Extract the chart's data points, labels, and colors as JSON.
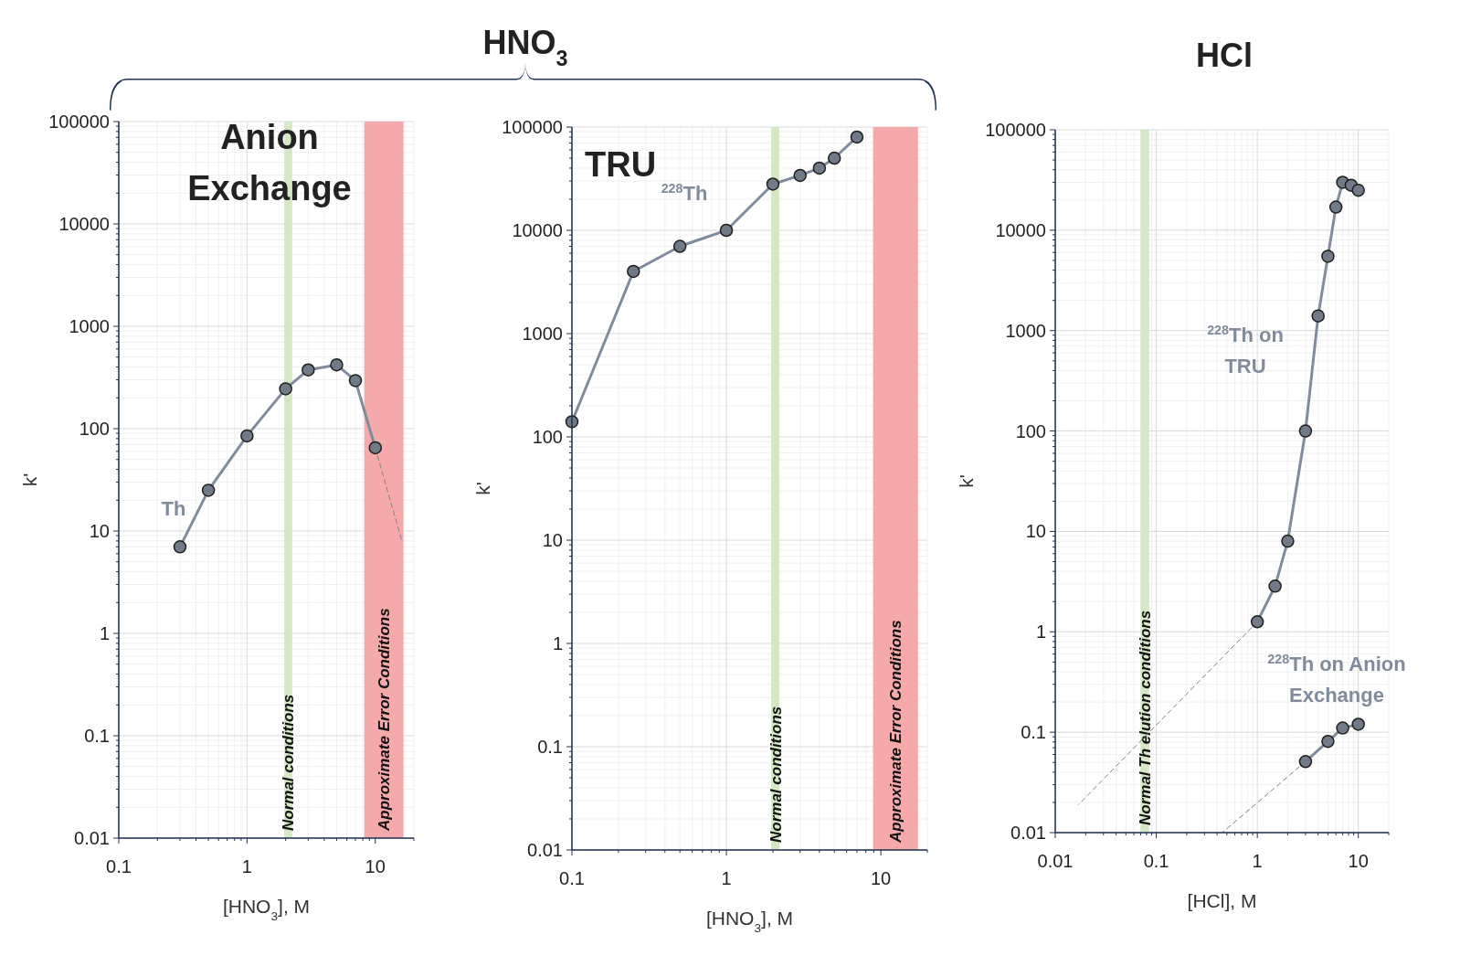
{
  "chart_data": [
    {
      "type": "line",
      "subtitle": "Anion Exchange",
      "xlabel": "[HNO$_{3}$], M",
      "ylabel": "k'",
      "log": "xy",
      "grid": true,
      "xlim": [
        0.1,
        20
      ],
      "ylim": [
        0.01,
        100000
      ],
      "xticks": [
        0.1,
        1,
        10
      ],
      "yticks": [
        0.01,
        0.1,
        1,
        10,
        100,
        1000,
        10000,
        100000
      ],
      "series": [
        {
          "name": "Th",
          "color": "#808b9c",
          "marker": "circle",
          "x": [
            0.3,
            0.5,
            1,
            2,
            3,
            5,
            7,
            10
          ],
          "values": [
            7,
            25,
            85,
            245,
            375,
            420,
            295,
            65
          ]
        },
        {
          "color": "#808080",
          "line_style": "dashed",
          "x": [
            10,
            16
          ],
          "values": [
            65,
            8.3
          ]
        }
      ],
      "bands": [
        {
          "axis": "x",
          "from": 1.95,
          "to": 2.25,
          "label": "Normal conditions",
          "color": "#d5e8c4"
        },
        {
          "axis": "x",
          "from": 8.2,
          "to": 16.6,
          "label": "Approximate Error Conditions",
          "color": "#f4aaaa"
        }
      ]
    },
    {
      "type": "line",
      "title": "HNO$_{3}$",
      "subtitle": "TRU",
      "xlabel": "[HNO$_{3}$], M",
      "ylabel": "k'",
      "log": "xy",
      "grid": true,
      "xlim": [
        0.1,
        20
      ],
      "ylim": [
        0.01,
        100000
      ],
      "xticks": [
        0.1,
        1,
        10
      ],
      "yticks": [
        0.01,
        0.1,
        1,
        10,
        100,
        1000,
        10000,
        100000
      ],
      "series": [
        {
          "name": "$^{228}$Th",
          "color": "#808b9c",
          "marker": "circle",
          "x": [
            0.1,
            0.25,
            0.5,
            1,
            2,
            3,
            4,
            5,
            7
          ],
          "values": [
            140,
            4000,
            7000,
            10000,
            28000,
            34000,
            40000,
            50000,
            80000
          ]
        }
      ],
      "bands": [
        {
          "axis": "x",
          "from": 1.95,
          "to": 2.2,
          "label": "Normal conditions",
          "color": "#d5e8c4"
        },
        {
          "axis": "x",
          "from": 8.9,
          "to": 17.4,
          "label": "Approximate Error Conditions",
          "color": "#f4aaaa"
        }
      ]
    },
    {
      "type": "line",
      "title": "HCl",
      "xlabel": "[HCl], M",
      "ylabel": "k'",
      "log": "xy",
      "grid": true,
      "xlim": [
        0.01,
        20
      ],
      "ylim": [
        0.01,
        100000
      ],
      "xticks": [
        0.01,
        0.1,
        1,
        10
      ],
      "yticks": [
        0.01,
        0.1,
        1,
        10,
        100,
        1000,
        10000,
        100000
      ],
      "series": [
        {
          "name": "$^{228}$Th on TRU",
          "color": "#808b9c",
          "marker": "circle",
          "x": [
            1,
            1.5,
            2,
            3,
            4,
            5,
            6,
            7,
            8.5,
            10
          ],
          "values": [
            1.26,
            2.85,
            8,
            100,
            1400,
            5500,
            17000,
            30000,
            28000,
            25000
          ]
        },
        {
          "name": "$^{228}$Th on Anion Exchange",
          "color": "#808b9c",
          "marker": "circle",
          "x": [
            3,
            5,
            7,
            10
          ],
          "values": [
            0.051,
            0.081,
            0.11,
            0.12
          ]
        },
        {
          "color": "#808080",
          "line_style": "dashed",
          "x": [
            1,
            0.017
          ],
          "values": [
            1.26,
            0.019
          ]
        },
        {
          "color": "#808080",
          "line_style": "dashed",
          "x": [
            3,
            0.45
          ],
          "values": [
            0.051,
            0.01
          ]
        }
      ],
      "bands": [
        {
          "axis": "x",
          "from": 0.07,
          "to": 0.085,
          "label": "Normal Th elution conditions",
          "color": "#d5e8c4"
        }
      ]
    }
  ]
}
